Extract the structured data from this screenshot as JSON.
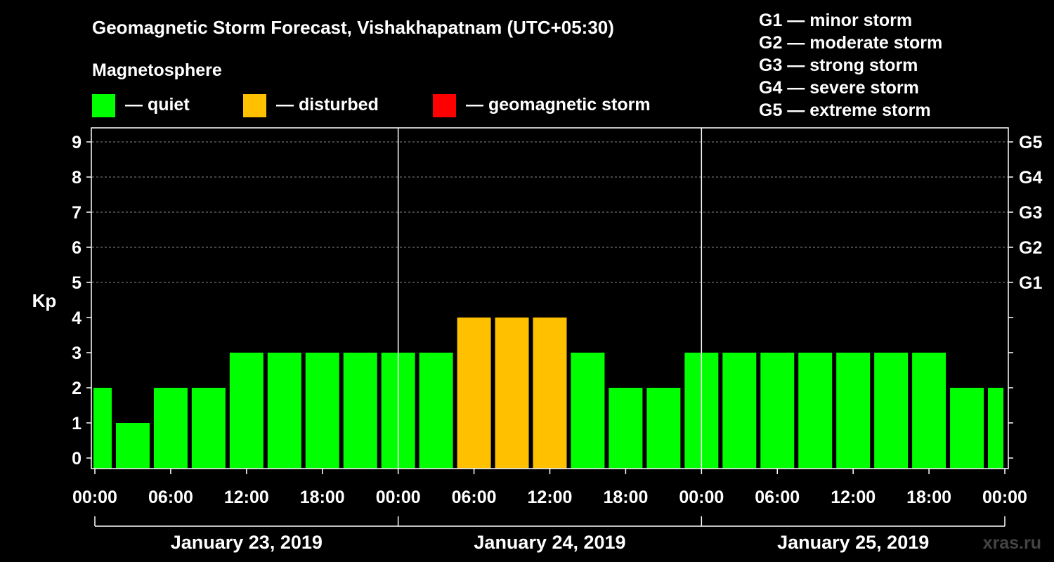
{
  "header": {
    "title": "Geomagnetic Storm Forecast, Vishakhapatnam (UTC+05:30)",
    "subtitle": "Magnetosphere"
  },
  "legend": [
    {
      "label": "— quiet",
      "color": "#00ff00"
    },
    {
      "label": "— disturbed",
      "color": "#ffc000"
    },
    {
      "label": "— geomagnetic storm",
      "color": "#ff0000"
    }
  ],
  "storm_scale": [
    "G1 — minor storm",
    "G2 — moderate storm",
    "G3 — strong storm",
    "G4 — severe storm",
    "G5 — extreme storm"
  ],
  "watermark": "xras.ru",
  "chart_data": {
    "type": "bar",
    "ylabel": "Kp",
    "ylim": [
      0,
      9
    ],
    "yticks": [
      "0",
      "1",
      "2",
      "3",
      "4",
      "5",
      "6",
      "7",
      "8",
      "9"
    ],
    "right_ticks": [
      {
        "kp": 5,
        "label": "G1"
      },
      {
        "kp": 6,
        "label": "G2"
      },
      {
        "kp": 7,
        "label": "G3"
      },
      {
        "kp": 8,
        "label": "G4"
      },
      {
        "kp": 9,
        "label": "G5"
      }
    ],
    "time_range_hours": [
      -1,
      72
    ],
    "xticks": [
      {
        "hour": 0,
        "label": "00:00"
      },
      {
        "hour": 6,
        "label": "06:00"
      },
      {
        "hour": 12,
        "label": "12:00"
      },
      {
        "hour": 18,
        "label": "18:00"
      },
      {
        "hour": 24,
        "label": "00:00"
      },
      {
        "hour": 30,
        "label": "06:00"
      },
      {
        "hour": 36,
        "label": "12:00"
      },
      {
        "hour": 42,
        "label": "18:00"
      },
      {
        "hour": 48,
        "label": "00:00"
      },
      {
        "hour": 54,
        "label": "06:00"
      },
      {
        "hour": 60,
        "label": "12:00"
      },
      {
        "hour": 66,
        "label": "18:00"
      },
      {
        "hour": 72,
        "label": "00:00"
      }
    ],
    "days": [
      {
        "label": "January 23, 2019",
        "start_hour": 0,
        "end_hour": 24
      },
      {
        "label": "January 24, 2019",
        "start_hour": 24,
        "end_hour": 48
      },
      {
        "label": "January 25, 2019",
        "start_hour": 48,
        "end_hour": 72
      }
    ],
    "bars": [
      {
        "start_hour": -1,
        "end_hour": 1.5,
        "kp": 2,
        "level": "quiet"
      },
      {
        "start_hour": 1.5,
        "end_hour": 4.5,
        "kp": 1,
        "level": "quiet"
      },
      {
        "start_hour": 4.5,
        "end_hour": 7.5,
        "kp": 2,
        "level": "quiet"
      },
      {
        "start_hour": 7.5,
        "end_hour": 10.5,
        "kp": 2,
        "level": "quiet"
      },
      {
        "start_hour": 10.5,
        "end_hour": 13.5,
        "kp": 3,
        "level": "quiet"
      },
      {
        "start_hour": 13.5,
        "end_hour": 16.5,
        "kp": 3,
        "level": "quiet"
      },
      {
        "start_hour": 16.5,
        "end_hour": 19.5,
        "kp": 3,
        "level": "quiet"
      },
      {
        "start_hour": 19.5,
        "end_hour": 22.5,
        "kp": 3,
        "level": "quiet"
      },
      {
        "start_hour": 22.5,
        "end_hour": 25.5,
        "kp": 3,
        "level": "quiet"
      },
      {
        "start_hour": 25.5,
        "end_hour": 28.5,
        "kp": 3,
        "level": "quiet"
      },
      {
        "start_hour": 28.5,
        "end_hour": 31.5,
        "kp": 4,
        "level": "disturbed"
      },
      {
        "start_hour": 31.5,
        "end_hour": 34.5,
        "kp": 4,
        "level": "disturbed"
      },
      {
        "start_hour": 34.5,
        "end_hour": 37.5,
        "kp": 4,
        "level": "disturbed"
      },
      {
        "start_hour": 37.5,
        "end_hour": 40.5,
        "kp": 3,
        "level": "quiet"
      },
      {
        "start_hour": 40.5,
        "end_hour": 43.5,
        "kp": 2,
        "level": "quiet"
      },
      {
        "start_hour": 43.5,
        "end_hour": 46.5,
        "kp": 2,
        "level": "quiet"
      },
      {
        "start_hour": 46.5,
        "end_hour": 49.5,
        "kp": 3,
        "level": "quiet"
      },
      {
        "start_hour": 49.5,
        "end_hour": 52.5,
        "kp": 3,
        "level": "quiet"
      },
      {
        "start_hour": 52.5,
        "end_hour": 55.5,
        "kp": 3,
        "level": "quiet"
      },
      {
        "start_hour": 55.5,
        "end_hour": 58.5,
        "kp": 3,
        "level": "quiet"
      },
      {
        "start_hour": 58.5,
        "end_hour": 61.5,
        "kp": 3,
        "level": "quiet"
      },
      {
        "start_hour": 61.5,
        "end_hour": 64.5,
        "kp": 3,
        "level": "quiet"
      },
      {
        "start_hour": 64.5,
        "end_hour": 67.5,
        "kp": 3,
        "level": "quiet"
      },
      {
        "start_hour": 67.5,
        "end_hour": 70.5,
        "kp": 2,
        "level": "quiet"
      },
      {
        "start_hour": 70.5,
        "end_hour": 72,
        "kp": 2,
        "level": "quiet"
      }
    ],
    "level_colors": {
      "quiet": "#00ff00",
      "disturbed": "#ffc000",
      "storm": "#ff0000"
    }
  }
}
